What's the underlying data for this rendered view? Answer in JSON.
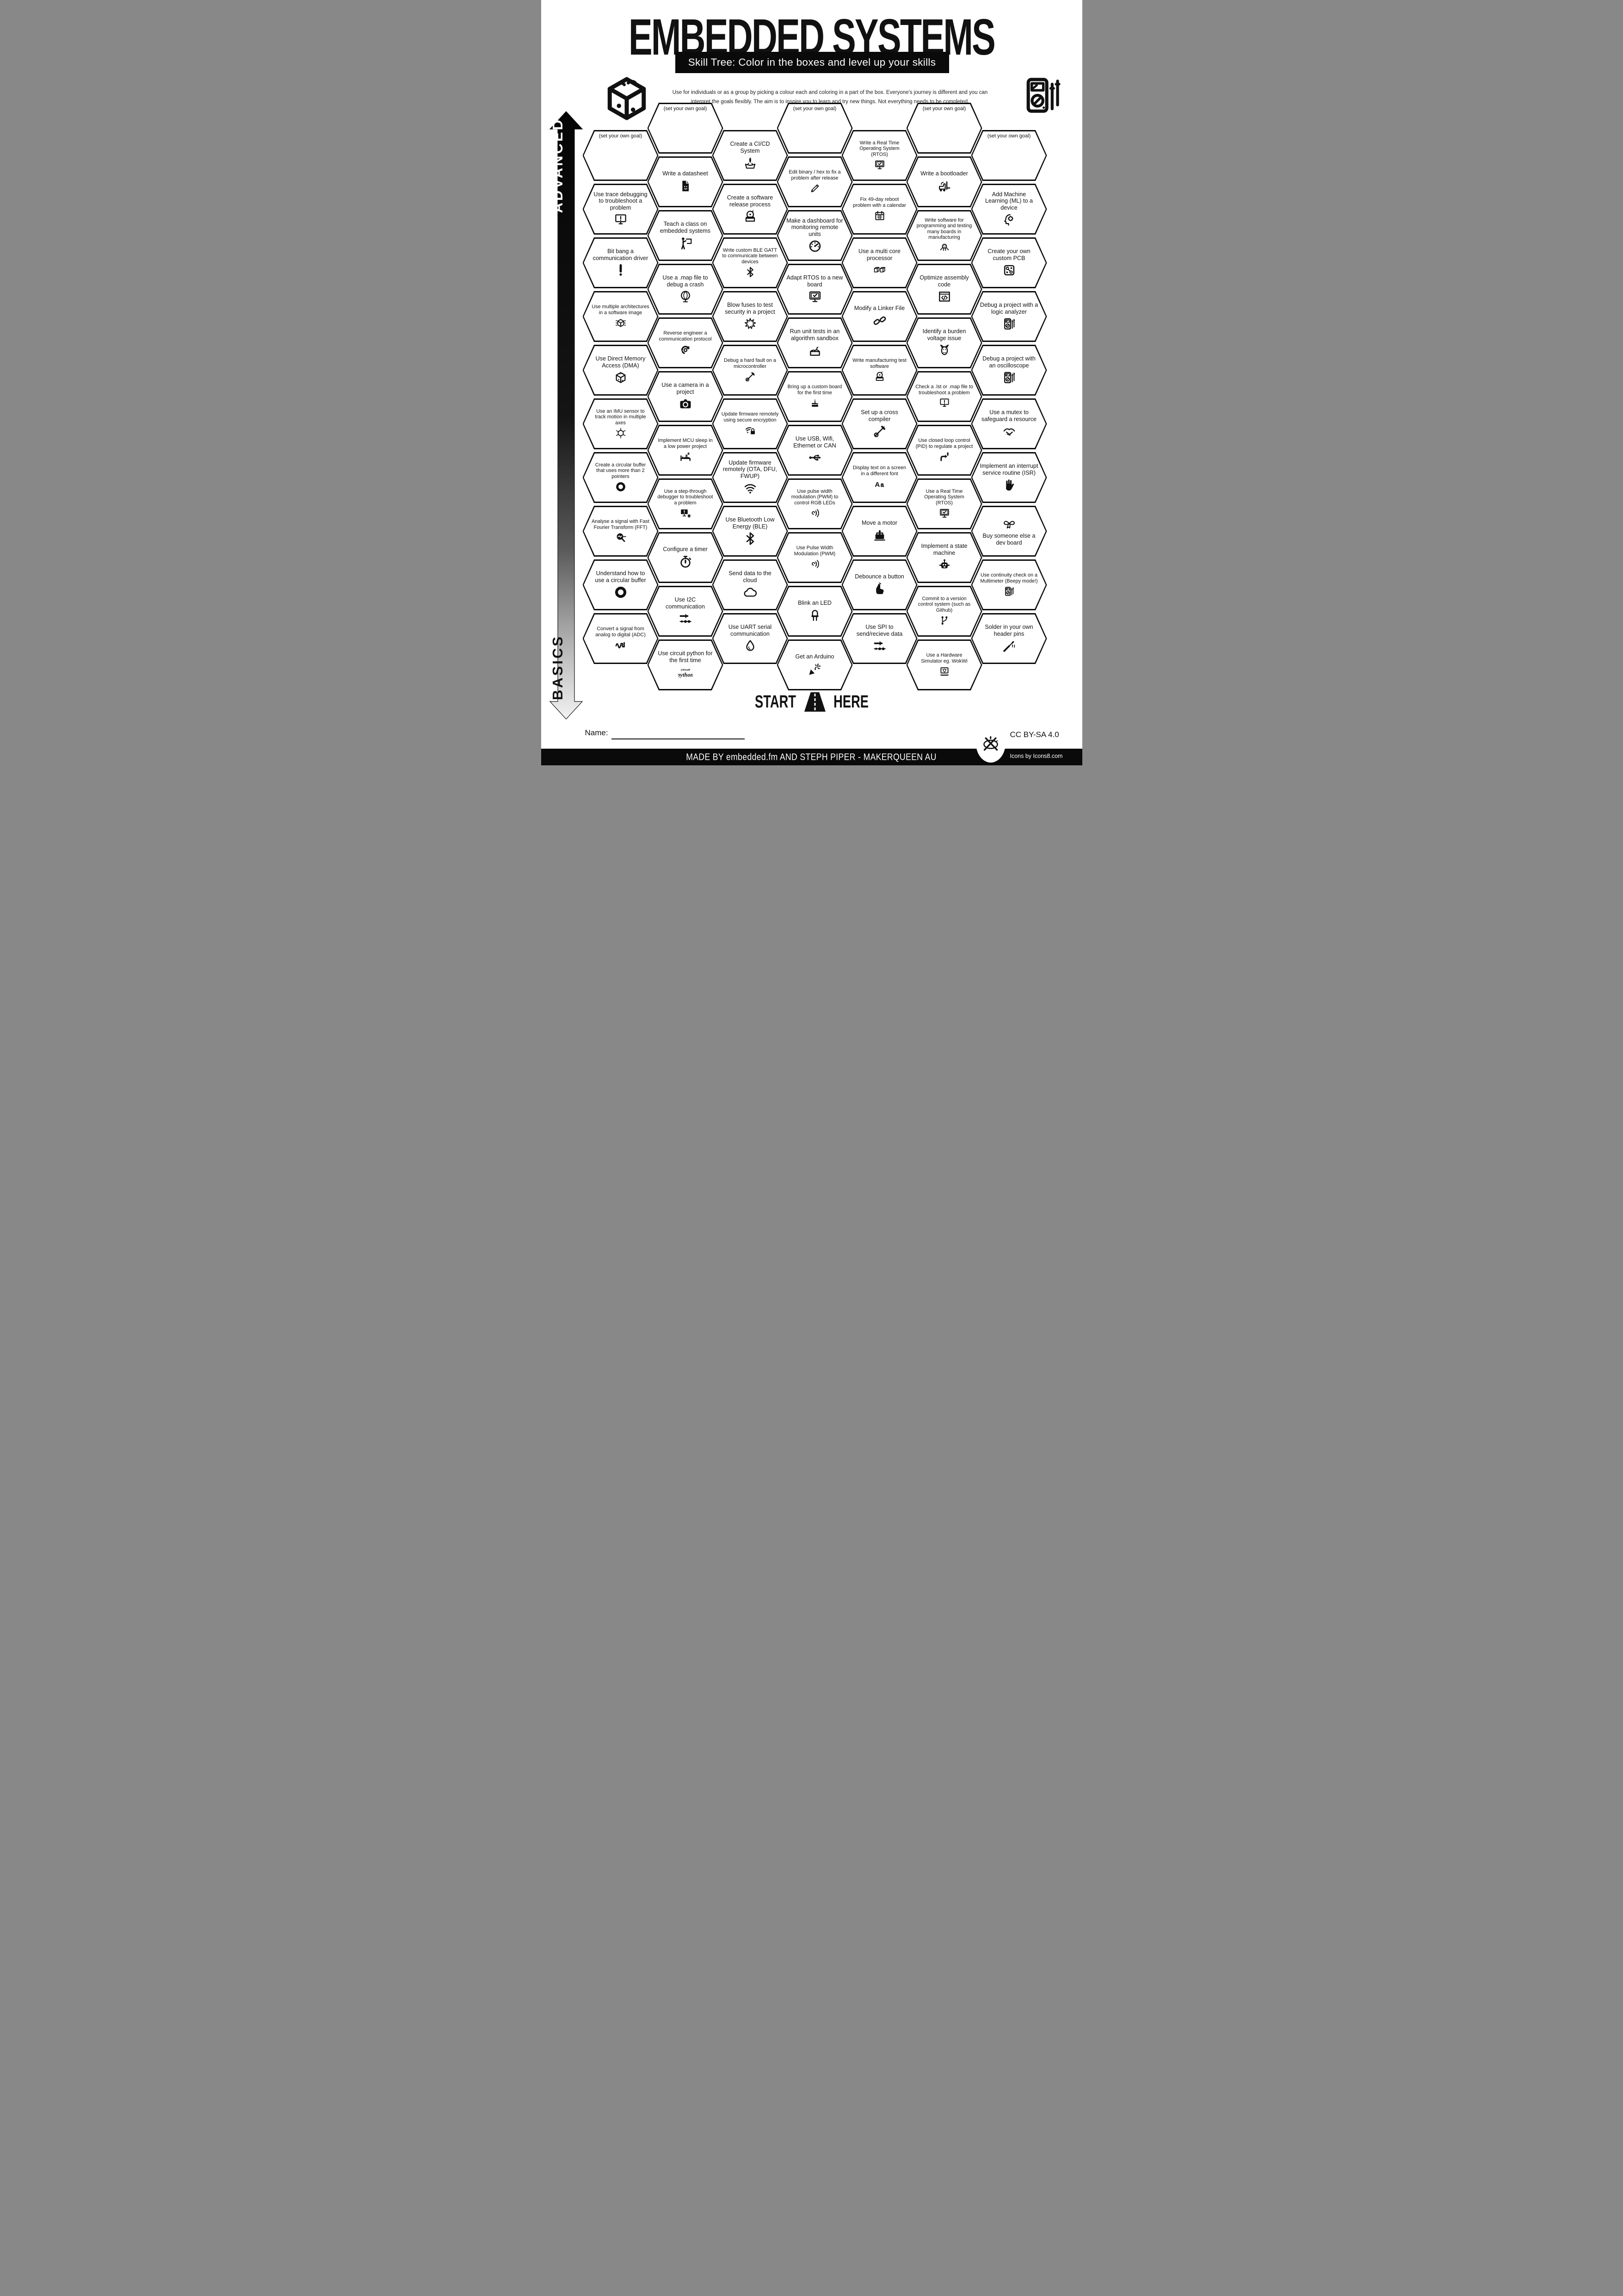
{
  "title": "EMBEDDED SYSTEMS",
  "subtitle_bar": "Skill Tree:  Color in the boxes and level up your skills",
  "description": {
    "line1": "Use for individuals or as a group by picking a colour each and coloring in a part of the box.  Everyone's journey is different and you can",
    "line2": "interpret the goals flexibly.  The aim is to inspire you to learn and try new things. Not everything needs to be completed."
  },
  "axis": {
    "advanced": "ADVANCED",
    "basics": "BASICS"
  },
  "start_here": {
    "start": "START",
    "here": "HERE"
  },
  "name_label": "Name:",
  "footer": {
    "credit": "MADE BY embedded.fm AND STEPH PIPER  -  MAKERQUEEN AU",
    "license": "CC BY-SA 4.0",
    "icons_credit": "Icons by Icons8.com"
  },
  "corner_logos": {
    "left": "brain-cube-icon",
    "right": "multimeter-icon",
    "badge": "maker-tools-icon"
  },
  "colors": {
    "ink": "#111111",
    "paper": "#ffffff"
  },
  "columns": [
    {
      "items": [
        {
          "label": "(set your own goal)",
          "icon": "goal-blank-icon",
          "goal": true
        },
        {
          "label": "Use trace debugging to troubleshoot a problem",
          "icon": "monitor-alert-icon"
        },
        {
          "label": "Bit bang a communication driver",
          "icon": "exclamation-icon"
        },
        {
          "label": "Use multiple architectures in a software image",
          "icon": "cube-io-icon",
          "small": true
        },
        {
          "label": "Use Direct Memory Access (DMA)",
          "icon": "brain-cube-icon"
        },
        {
          "label": "Use an IMU sensor to track motion in multiple axes",
          "icon": "axes-cube-icon",
          "small": true
        },
        {
          "label": "Create a circular buffer that uses more than 2 pointers",
          "icon": "circular-buffer-icon",
          "small": true
        },
        {
          "label": "Analyse a signal with Fast Fourier Transform (FFT)",
          "icon": "fft-magnifier-icon",
          "small": true
        },
        {
          "label": "Understand how to use a circular buffer",
          "icon": "circular-buffer-icon"
        },
        {
          "label": "Convert a signal from analog to digital (ADC)",
          "icon": "adc-wave-icon",
          "small": true
        }
      ]
    },
    {
      "items": [
        {
          "label": "(set your own goal)",
          "icon": "goal-blank-icon",
          "goal": true
        },
        {
          "label": "Write a datasheet",
          "icon": "datasheet-doc-icon"
        },
        {
          "label": "Teach a class on embedded systems",
          "icon": "teacher-icon"
        },
        {
          "label": "Use a .map file to debug a crash",
          "icon": "globe-icon"
        },
        {
          "label": "Reverse engineer a communication protocol",
          "icon": "reverse-engineer-icon",
          "small": true
        },
        {
          "label": "Use a camera in a project",
          "icon": "camera-icon"
        },
        {
          "label": "Implement MCU sleep in a low power project",
          "icon": "sleep-bed-icon",
          "small": true
        },
        {
          "label": "Use a step-through debugger to troubleshoot a problem",
          "icon": "monitor-bug-icon",
          "small": true
        },
        {
          "label": "Configure a timer",
          "icon": "stopwatch-icon"
        },
        {
          "label": "Use I2C communication",
          "icon": "bus-arrow-icon"
        },
        {
          "label": "Use circuit python for the first time",
          "icon": "circuitpython-logo-icon"
        }
      ]
    },
    {
      "items": [
        {
          "label": "Create a CI/CD System",
          "icon": "cicd-rocket-icon"
        },
        {
          "label": "Create a software release process",
          "icon": "release-box-icon"
        },
        {
          "label": "Write custom BLE GATT to communicate between devices",
          "icon": "bluetooth-icon",
          "small": true
        },
        {
          "label": "Blow fuses to test security in a project",
          "icon": "explosion-icon"
        },
        {
          "label": "Debug a hard fault on a microcontroller",
          "icon": "tools-icon",
          "small": true
        },
        {
          "label": "Update firmware remotely using secure encryption",
          "icon": "wifi-lock-icon",
          "small": true
        },
        {
          "label": "Update firmware remotely (OTA, DFU, FWUP)",
          "icon": "wifi-icon"
        },
        {
          "label": "Use Bluetooth Low Energy (BLE)",
          "icon": "bluetooth-icon"
        },
        {
          "label": "Send data to the cloud",
          "icon": "cloud-icon"
        },
        {
          "label": "Use UART serial communication",
          "icon": "droplet-icon"
        }
      ]
    },
    {
      "items": [
        {
          "label": "(set your own goal)",
          "icon": "goal-blank-icon",
          "goal": true
        },
        {
          "label": "Edit binary / hex to fix a problem after release",
          "icon": "pencil-icon",
          "small": true
        },
        {
          "label": "Make a dashboard for monitoring remote units",
          "icon": "gauge-icon"
        },
        {
          "label": "Adapt RTOS to a new board",
          "icon": "monitor-check-icon"
        },
        {
          "label": "Run unit tests in an algorithm sandbox",
          "icon": "sandbox-icon"
        },
        {
          "label": "Bring up a custom board for the first time",
          "icon": "cake-icon",
          "small": true
        },
        {
          "label": "Use USB, Wifi, Ethernet or CAN",
          "icon": "usb-icon"
        },
        {
          "label": "Use pulse width modulation (PWM) to control RGB LEDs",
          "icon": "pwm-icon",
          "small": true
        },
        {
          "label": "Use Pulse Width Modulation (PWM)",
          "icon": "pwm-icon",
          "small": true
        },
        {
          "label": "Blink an LED",
          "icon": "led-icon"
        },
        {
          "label": "Get an Arduino",
          "icon": "confetti-icon"
        }
      ]
    },
    {
      "items": [
        {
          "label": "Write a Real Time Operating System (RTOS)",
          "icon": "monitor-check-icon",
          "small": true
        },
        {
          "label": "Fix 49-day reboot problem with a calendar",
          "icon": "calendar-icon",
          "small": true
        },
        {
          "label": "Use a multi core processor",
          "icon": "multicore-icon"
        },
        {
          "label": "Modify a Linker File",
          "icon": "chain-link-icon"
        },
        {
          "label": "Write manufacturing test software",
          "icon": "release-box-icon",
          "small": true
        },
        {
          "label": "Set up a cross compiler",
          "icon": "tools-icon"
        },
        {
          "label": "Display text on a screen in a different font",
          "icon": "font-aa-icon",
          "small": true
        },
        {
          "label": "Move a motor",
          "icon": "motor-icon"
        },
        {
          "label": "Debounce a button",
          "icon": "debounce-finger-icon"
        },
        {
          "label": "Use SPI to send/recieve data",
          "icon": "bus-arrow-icon"
        }
      ]
    },
    {
      "items": [
        {
          "label": "(set your own goal)",
          "icon": "goal-blank-icon",
          "goal": true
        },
        {
          "label": "Write a bootloader",
          "icon": "forklift-icon"
        },
        {
          "label": "Write software for programming and testing many boards in manufacturing",
          "icon": "octopus-icon",
          "small": true
        },
        {
          "label": "Optimize assembly code",
          "icon": "code-window-icon"
        },
        {
          "label": "Identify a burden voltage issue",
          "icon": "donkey-icon"
        },
        {
          "label": "Check a .lst or .map file to troubleshoot a problem",
          "icon": "monitor-alert-icon",
          "small": true
        },
        {
          "label": "Use closed loop control (PID) to regulate a project",
          "icon": "pid-arrows-icon",
          "small": true
        },
        {
          "label": "Use a Real Time Operating System (RTOS)",
          "icon": "monitor-check-icon",
          "small": true
        },
        {
          "label": "Implement a state machine",
          "icon": "robot-icon"
        },
        {
          "label": "Commit to a version control system (such as Github)",
          "icon": "git-branch-icon",
          "small": true
        },
        {
          "label": "Use a Hardware Simulator eg. WokWi",
          "icon": "hardware-sim-icon",
          "small": true
        }
      ]
    },
    {
      "items": [
        {
          "label": "(set your own goal)",
          "icon": "goal-blank-icon",
          "goal": true
        },
        {
          "label": "Add Machine Learning (ML) to a device",
          "icon": "ml-brain-icon"
        },
        {
          "label": "Create your own custom PCB",
          "icon": "pcb-icon"
        },
        {
          "label": "Debug a project with a logic analyzer",
          "icon": "multimeter-icon"
        },
        {
          "label": "Debug a project with an oscilloscope",
          "icon": "multimeter-icon"
        },
        {
          "label": "Use a mutex to safeguard a resource",
          "icon": "handshake-icon"
        },
        {
          "label": "Implement an interrupt service routine (ISR)",
          "icon": "hand-isr-icon"
        },
        {
          "label": "Buy someone else a dev board",
          "icon": "gift-bow-icon",
          "icon_top": true
        },
        {
          "label": "Use continuity check on a Multimeter (Beepy mode!)",
          "icon": "multimeter-icon",
          "small": true
        },
        {
          "label": "Solder in your own header pins",
          "icon": "soldering-icon"
        }
      ]
    }
  ]
}
